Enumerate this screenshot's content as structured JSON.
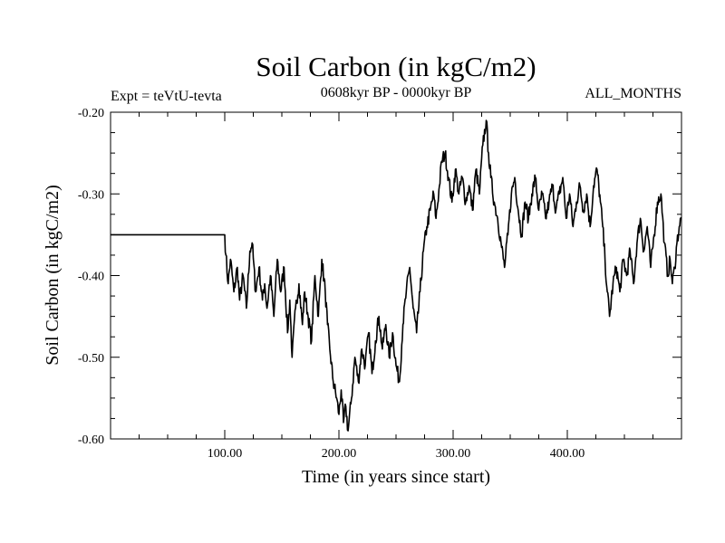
{
  "chart_data": {
    "type": "line",
    "title": "Soil Carbon (in kgC/m2)",
    "subtitle_left": "Expt = teVtU-tevta",
    "subtitle_center": "0608kyr BP - 0000kyr BP",
    "subtitle_right": "ALL_MONTHS",
    "xlabel": "Time (in years since start)",
    "ylabel": "Soil Carbon (in kgC/m2)",
    "xlim": [
      0,
      500
    ],
    "ylim": [
      -0.6,
      -0.2
    ],
    "xticks": [
      100,
      200,
      300,
      400
    ],
    "xtick_labels": [
      "100.00",
      "200.00",
      "300.00",
      "400.00"
    ],
    "yticks": [
      -0.6,
      -0.5,
      -0.4,
      -0.3,
      -0.2
    ],
    "ytick_labels": [
      "-0.60",
      "-0.50",
      "-0.40",
      "-0.30",
      "-0.20"
    ],
    "grid": false,
    "series": [
      {
        "color": "#000000",
        "x": [
          0,
          100,
          101,
          103,
          105,
          108,
          111,
          113,
          116,
          119,
          122,
          124,
          127,
          130,
          133,
          135,
          137,
          140,
          143,
          146,
          149,
          152,
          155,
          157,
          159,
          162,
          165,
          168,
          170,
          173,
          176,
          179,
          182,
          185,
          188,
          190,
          192,
          195,
          198,
          200,
          202,
          204,
          206,
          208,
          211,
          214,
          217,
          220,
          223,
          226,
          229,
          232,
          235,
          238,
          241,
          244,
          247,
          250,
          253,
          256,
          259,
          262,
          265,
          268,
          271,
          274,
          277,
          280,
          283,
          285,
          288,
          290,
          293,
          296,
          299,
          302,
          305,
          308,
          311,
          314,
          317,
          320,
          323,
          326,
          329,
          331,
          333,
          336,
          339,
          342,
          345,
          348,
          351,
          354,
          357,
          360,
          363,
          366,
          369,
          372,
          375,
          378,
          381,
          384,
          387,
          390,
          393,
          396,
          399,
          402,
          405,
          408,
          411,
          414,
          417,
          420,
          423,
          426,
          429,
          431,
          433,
          435,
          437,
          440,
          443,
          446,
          449,
          452,
          455,
          458,
          461,
          464,
          467,
          470,
          473,
          476,
          479,
          482,
          485,
          488,
          490,
          492,
          494,
          496,
          498,
          500
        ],
        "values": [
          -0.35,
          -0.35,
          -0.375,
          -0.41,
          -0.38,
          -0.42,
          -0.39,
          -0.43,
          -0.4,
          -0.44,
          -0.37,
          -0.36,
          -0.42,
          -0.39,
          -0.43,
          -0.41,
          -0.44,
          -0.4,
          -0.45,
          -0.38,
          -0.42,
          -0.39,
          -0.47,
          -0.43,
          -0.5,
          -0.44,
          -0.41,
          -0.46,
          -0.42,
          -0.45,
          -0.48,
          -0.4,
          -0.45,
          -0.38,
          -0.42,
          -0.46,
          -0.49,
          -0.53,
          -0.55,
          -0.57,
          -0.54,
          -0.58,
          -0.56,
          -0.59,
          -0.55,
          -0.5,
          -0.53,
          -0.49,
          -0.51,
          -0.47,
          -0.52,
          -0.48,
          -0.45,
          -0.49,
          -0.46,
          -0.5,
          -0.47,
          -0.51,
          -0.53,
          -0.46,
          -0.42,
          -0.39,
          -0.44,
          -0.47,
          -0.42,
          -0.37,
          -0.34,
          -0.32,
          -0.3,
          -0.33,
          -0.29,
          -0.26,
          -0.25,
          -0.28,
          -0.31,
          -0.27,
          -0.3,
          -0.28,
          -0.31,
          -0.29,
          -0.32,
          -0.27,
          -0.3,
          -0.24,
          -0.21,
          -0.25,
          -0.28,
          -0.31,
          -0.33,
          -0.36,
          -0.39,
          -0.35,
          -0.3,
          -0.28,
          -0.32,
          -0.35,
          -0.31,
          -0.33,
          -0.3,
          -0.28,
          -0.32,
          -0.3,
          -0.33,
          -0.31,
          -0.29,
          -0.32,
          -0.3,
          -0.28,
          -0.33,
          -0.3,
          -0.34,
          -0.31,
          -0.29,
          -0.32,
          -0.3,
          -0.34,
          -0.29,
          -0.27,
          -0.31,
          -0.34,
          -0.38,
          -0.42,
          -0.45,
          -0.41,
          -0.39,
          -0.42,
          -0.38,
          -0.4,
          -0.37,
          -0.41,
          -0.36,
          -0.33,
          -0.37,
          -0.34,
          -0.39,
          -0.35,
          -0.31,
          -0.3,
          -0.36,
          -0.4,
          -0.38,
          -0.41,
          -0.39,
          -0.36,
          -0.34,
          -0.33
        ]
      }
    ]
  }
}
